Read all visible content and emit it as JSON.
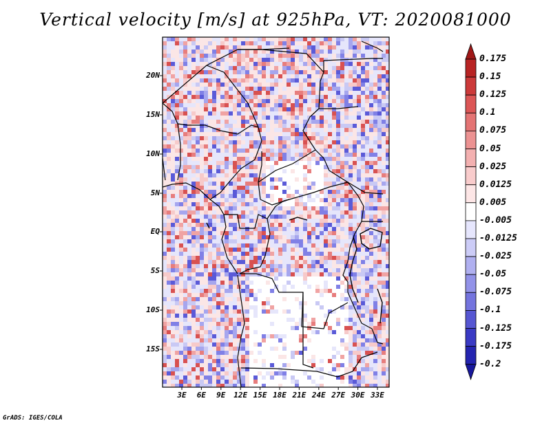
{
  "title": "Vertical velocity [m/s] at 925hPa, VT: 2020081000",
  "credit": "GrADS: IGES/COLA",
  "map": {
    "lat_ticks": [
      "20N",
      "15N",
      "10N",
      "5N",
      "EQ",
      "5S",
      "10S",
      "15S"
    ],
    "lon_ticks": [
      "3E",
      "6E",
      "9E",
      "12E",
      "15E",
      "18E",
      "21E",
      "24E",
      "27E",
      "30E",
      "33E"
    ],
    "field_colors": {
      "positive": [
        "#fbe6e6",
        "#f7caca",
        "#f0a3a3",
        "#e77d7d",
        "#d85151"
      ],
      "negative": [
        "#e6e6fb",
        "#c9c9f4",
        "#a6a6ee",
        "#8080e6",
        "#5a5ad8"
      ]
    }
  },
  "colorbar": {
    "labels": [
      "0.175",
      "0.15",
      "0.125",
      "0.1",
      "0.075",
      "0.05",
      "0.025",
      "0.0125",
      "0.005",
      "-0.005",
      "-0.0125",
      "-0.025",
      "-0.05",
      "-0.075",
      "-0.1",
      "-0.125",
      "-0.175",
      "-0.2"
    ],
    "colors": [
      "#a01818",
      "#b82424",
      "#cc3a3a",
      "#dc5656",
      "#e47474",
      "#ec9292",
      "#f3b0b0",
      "#f9cccc",
      "#fde6e6",
      "#ffffff",
      "#e6e6fd",
      "#ccccf7",
      "#b0b0f0",
      "#9292e8",
      "#7474de",
      "#5656d2",
      "#3a3ac4",
      "#2424b0",
      "#18189c"
    ]
  }
}
